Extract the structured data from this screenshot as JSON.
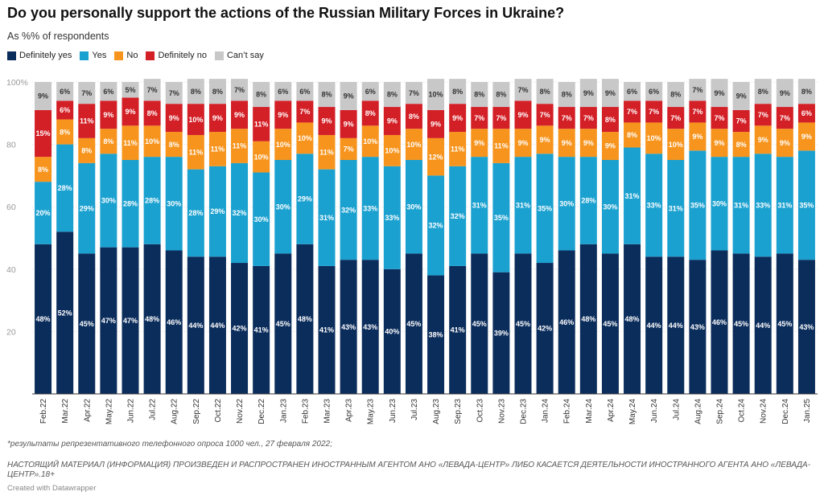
{
  "header": {
    "title": "Do you personally support the actions of the Russian Military Forces in Ukraine?",
    "subtitle": "As %% of respondents"
  },
  "footer": {
    "note": "*результаты репрезентативного телефонного опроса 1000 чел., 27 февраля 2022;",
    "disclaimer": "НАСТОЯЩИЙ МАТЕРИАЛ (ИНФОРМАЦИЯ) ПРОИЗВЕДЕН И РАСПРОСТРАНЕН ИНОСТРАННЫМ АГЕНТОМ АНО «ЛЕВАДА-ЦЕНТР» ЛИБО КАСАЕТСЯ ДЕЯТЕЛЬНОСТИ ИНОСТРАННОГО АГЕНТА АНО «ЛЕВАДА-ЦЕНТР».18+",
    "credit": "Created with Datawrapper"
  },
  "chart_data": {
    "type": "bar",
    "stacked": true,
    "ylim": [
      0,
      100
    ],
    "yticks": [
      20,
      40,
      60,
      80,
      100
    ],
    "ytick_labels": [
      "20",
      "40",
      "60",
      "80",
      "100%"
    ],
    "grid": true,
    "legend_position": "top-left",
    "categories": [
      "Feb.22",
      "Mar.22",
      "Apr.22",
      "May.22",
      "Jun.22",
      "Jul.22",
      "Aug.22",
      "Sep.22",
      "Oct.22",
      "Nov.22",
      "Dec.22",
      "Jan.23",
      "Feb.23",
      "Mar.23",
      "Apr.23",
      "May.23",
      "Jun.23",
      "Jul.23",
      "Aug.23",
      "Sep.23",
      "Oct.23",
      "Nov.23",
      "Dec.23",
      "Jan.24",
      "Feb.24",
      "Mar.24",
      "Apr.24",
      "May.24",
      "Jun.24",
      "Jul.24",
      "Aug.24",
      "Sep.24",
      "Oct.24",
      "Nov.24",
      "Dec.24",
      "Jan.25"
    ],
    "series": [
      {
        "name": "Definitely yes",
        "color": "#0b2d5c",
        "values": [
          48,
          52,
          45,
          47,
          47,
          48,
          46,
          44,
          44,
          42,
          41,
          45,
          48,
          41,
          43,
          43,
          40,
          45,
          38,
          41,
          45,
          39,
          45,
          42,
          46,
          48,
          45,
          48,
          44,
          44,
          43,
          46,
          45,
          44,
          45,
          43
        ]
      },
      {
        "name": "Yes",
        "color": "#1ba1d0",
        "values": [
          20,
          28,
          29,
          30,
          28,
          28,
          30,
          28,
          29,
          32,
          30,
          30,
          29,
          31,
          32,
          33,
          33,
          30,
          32,
          32,
          31,
          35,
          31,
          35,
          30,
          28,
          30,
          31,
          33,
          31,
          35,
          30,
          31,
          33,
          31,
          35
        ]
      },
      {
        "name": "No",
        "color": "#f7941d",
        "values": [
          8,
          8,
          8,
          8,
          11,
          10,
          8,
          11,
          11,
          11,
          10,
          10,
          10,
          11,
          7,
          10,
          10,
          10,
          12,
          11,
          9,
          11,
          9,
          9,
          9,
          9,
          9,
          8,
          10,
          10,
          9,
          9,
          8,
          9,
          9,
          9
        ]
      },
      {
        "name": "Definitely no",
        "color": "#d31f26",
        "values": [
          15,
          6,
          11,
          9,
          9,
          8,
          9,
          10,
          9,
          9,
          11,
          9,
          7,
          9,
          9,
          8,
          9,
          8,
          9,
          9,
          7,
          7,
          9,
          7,
          7,
          7,
          8,
          7,
          7,
          7,
          7,
          7,
          7,
          7,
          7,
          6
        ]
      },
      {
        "name": "Can’t say",
        "color": "#c8c8c8",
        "values": [
          9,
          6,
          7,
          6,
          5,
          7,
          7,
          8,
          8,
          7,
          8,
          6,
          6,
          8,
          9,
          6,
          8,
          7,
          10,
          8,
          8,
          8,
          7,
          8,
          8,
          9,
          9,
          6,
          6,
          8,
          7,
          9,
          9,
          8,
          9,
          8
        ]
      }
    ]
  }
}
